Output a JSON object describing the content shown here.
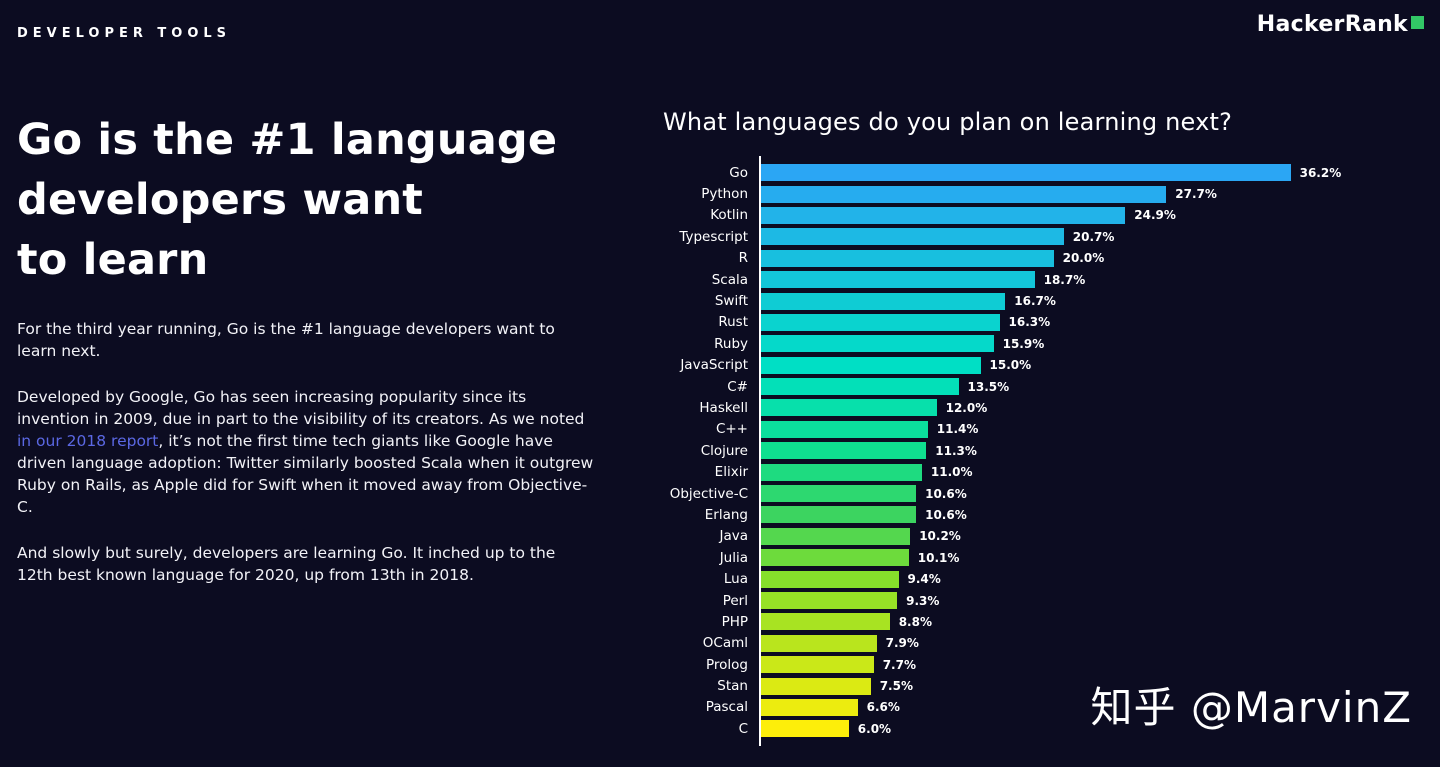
{
  "page": {
    "bg": "#0c0c21",
    "eyebrow": "DEVELOPER TOOLS",
    "brand": {
      "name": "HackerRank",
      "accent": "#32c766"
    }
  },
  "article": {
    "title_lines": [
      "Go is the #1 language",
      "developers want",
      "to learn"
    ],
    "p1": "For the third year running, Go is the #1 language developers want to learn next.",
    "p2_before": "Developed by Google, Go has seen increasing popularity since its invention in 2009, due in part to the visibility of its creators. As we noted ",
    "link_text": "in our 2018 report",
    "link_color": "#5b68e3",
    "p2_after": ", it’s not the first time tech giants like Google have driven language adoption: Twitter similarly boosted Scala when it outgrew Ruby on Rails, as Apple did for Swift when it moved away from Objective-C.",
    "p3": "And slowly but surely, developers are learning Go. It inched up to the 12th best known language for 2020, up from 13th in 2018."
  },
  "chart_data": {
    "type": "bar",
    "orientation": "horizontal",
    "title": "What languages do you plan on learning next?",
    "categories": [
      "Go",
      "Python",
      "Kotlin",
      "Typescript",
      "R",
      "Scala",
      "Swift",
      "Rust",
      "Ruby",
      "JavaScript",
      "C#",
      "Haskell",
      "C++",
      "Clojure",
      "Elixir",
      "Objective-C",
      "Erlang",
      "Java",
      "Julia",
      "Lua",
      "Perl",
      "PHP",
      "OCaml",
      "Prolog",
      "Stan",
      "Pascal",
      "C"
    ],
    "values": [
      36.2,
      27.7,
      24.9,
      20.7,
      20.0,
      18.7,
      16.7,
      16.3,
      15.9,
      15.0,
      13.5,
      12.0,
      11.4,
      11.3,
      11.0,
      10.6,
      10.6,
      10.2,
      10.1,
      9.4,
      9.3,
      8.8,
      7.9,
      7.7,
      7.5,
      6.6,
      6.0
    ],
    "value_suffix": "%",
    "xlim": [
      0,
      40
    ],
    "legend": "none",
    "grid": false,
    "color_stops": [
      {
        "t": 0.0,
        "color": "#2ba6f4"
      },
      {
        "t": 0.35,
        "color": "#00e0c4"
      },
      {
        "t": 0.5,
        "color": "#0fdf90"
      },
      {
        "t": 0.62,
        "color": "#3ed45e"
      },
      {
        "t": 0.73,
        "color": "#86df2b"
      },
      {
        "t": 1.0,
        "color": "#fdee0a"
      }
    ]
  },
  "watermark": "知乎 @MarvinZ"
}
